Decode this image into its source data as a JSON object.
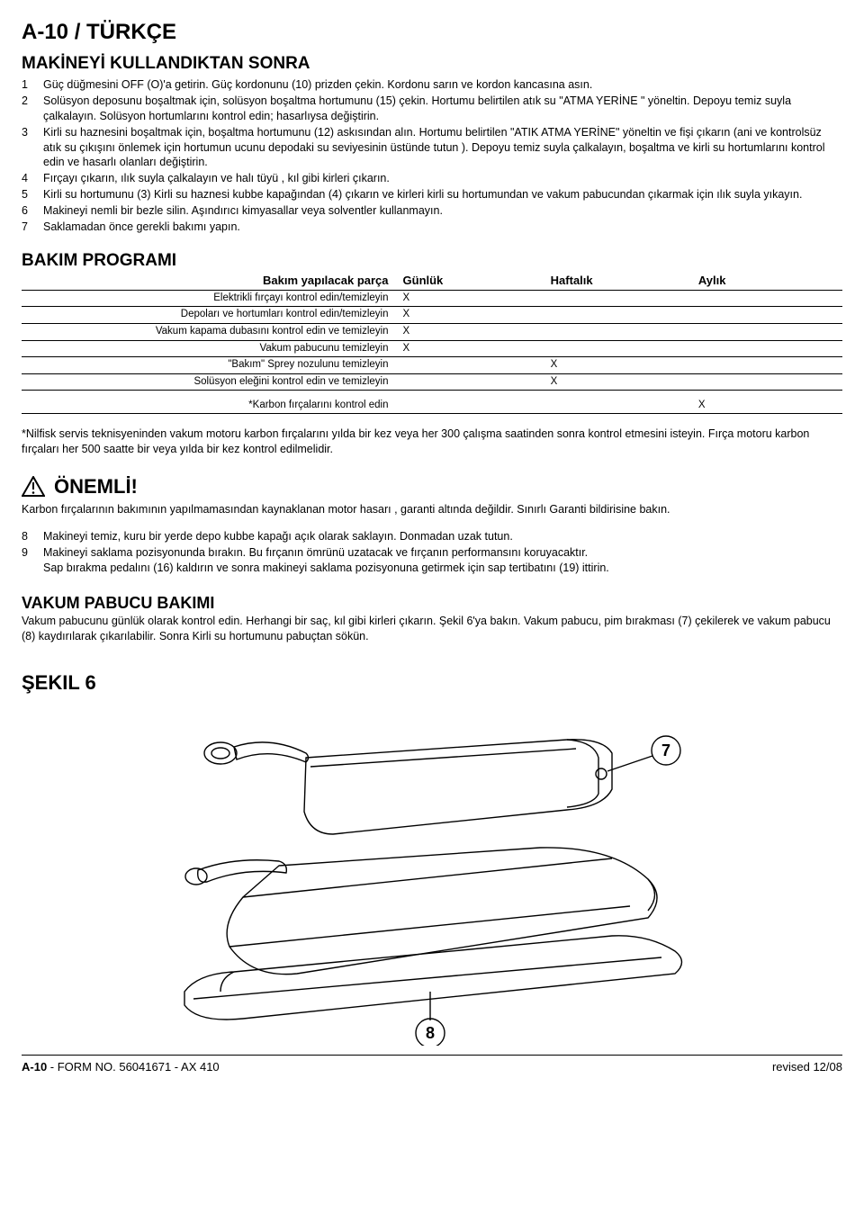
{
  "header": "A-10 / TÜRKÇE",
  "section1": {
    "title": "MAKİNEYİ KULLANDIKTAN SONRA",
    "items": [
      "Güç düğmesini OFF (O)'a getirin. Güç kordonunu (10) prizden çekin. Kordonu sarın ve kordon kancasına asın.",
      "Solüsyon deposunu boşaltmak için, solüsyon boşaltma hortumunu (15) çekin. Hortumu belirtilen atık su \"ATMA YERİNE \" yöneltin. Depoyu temiz suyla çalkalayın. Solüsyon hortumlarını kontrol edin; hasarlıysa değiştirin.",
      "Kirli su haznesini boşaltmak için, boşaltma hortumunu (12) askısından alın. Hortumu belirtilen \"ATIK ATMA YERİNE\" yöneltin ve fişi çıkarın (ani ve kontrolsüz atık su çıkışını önlemek için hortumun ucunu depodaki su seviyesinin üstünde tutun ). Depoyu temiz suyla çalkalayın, boşaltma ve kirli su hortumlarını kontrol edin ve hasarlı olanları değiştirin.",
      "Fırçayı çıkarın, ılık suyla çalkalayın ve halı tüyü , kıl gibi kirleri çıkarın.",
      "Kirli su hortumunu (3) Kirli su haznesi kubbe kapağından (4) çıkarın ve kirleri kirli su hortumundan ve vakum pabucundan çıkarmak için ılık suyla yıkayın.",
      "Makineyi nemli bir bezle silin. Aşındırıcı kimyasallar veya solventler kullanmayın.",
      "Saklamadan önce gerekli bakımı yapın."
    ]
  },
  "maint": {
    "title": "BAKIM PROGRAMI",
    "headers": {
      "part": "Bakım yapılacak parça",
      "daily": "Günlük",
      "weekly": "Haftalık",
      "monthly": "Aylık"
    },
    "rows": [
      {
        "part": "Elektrikli fırçayı kontrol edin/temizleyin",
        "daily": "X",
        "weekly": "",
        "monthly": ""
      },
      {
        "part": "Depoları ve hortumları kontrol edin/temizleyin",
        "daily": "X",
        "weekly": "",
        "monthly": ""
      },
      {
        "part": "Vakum kapama dubasını kontrol edin ve temizleyin",
        "daily": "X",
        "weekly": "",
        "monthly": ""
      },
      {
        "part": "Vakum pabucunu temizleyin",
        "daily": "X",
        "weekly": "",
        "monthly": ""
      },
      {
        "part": "\"Bakım\" Sprey nozulunu temizleyin",
        "daily": "",
        "weekly": "X",
        "monthly": ""
      },
      {
        "part": "Solüsyon eleğini kontrol edin ve temizleyin",
        "daily": "",
        "weekly": "X",
        "monthly": ""
      }
    ],
    "last_row": {
      "part": "*Karbon fırçalarını kontrol edin",
      "daily": "",
      "weekly": "",
      "monthly": "X"
    }
  },
  "note": "*Nilfisk servis teknisyeninden vakum motoru karbon fırçalarını yılda bir kez veya her 300 çalışma saatinden sonra kontrol etmesini isteyin. Fırça motoru karbon fırçaları her 500 saatte bir veya yılda bir kez kontrol edilmelidir.",
  "warn": {
    "heading": "ÖNEMLİ!",
    "text": "Karbon fırçalarının bakımının yapılmamasından kaynaklanan motor hasarı , garanti altında değildir. Sınırlı Garanti bildirisine bakın."
  },
  "sublist": [
    {
      "n": "8",
      "t": "Makineyi temiz, kuru bir yerde depo kubbe kapağı açık olarak saklayın. Donmadan uzak tutun."
    },
    {
      "n": "9",
      "t": "Makineyi saklama pozisyonunda bırakın. Bu fırçanın ömrünü uzatacak ve fırçanın performansını koruyacaktır.\nSap bırakma pedalını (16) kaldırın ve sonra makineyi saklama pozisyonuna getirmek için sap tertibatını (19) ittirin."
    }
  ],
  "vp": {
    "title": "VAKUM PABUCU BAKIMI",
    "text": "Vakum pabucunu günlük olarak kontrol edin. Herhangi bir saç, kıl gibi kirleri çıkarın. Şekil 6'ya bakın. Vakum pabucu, pim bırakması (7) çekilerek ve vakum pabucu (8) kaydırılarak çıkarılabilir. Sonra Kirli su hortumunu pabuçtan sökün."
  },
  "figure": {
    "title": "ŞEKIL 6",
    "callouts": {
      "a": "7",
      "b": "8"
    }
  },
  "footer": {
    "left_bold": "A-10",
    "left_rest": " - FORM NO. 56041671 - AX 410",
    "right": "revised 12/08"
  }
}
